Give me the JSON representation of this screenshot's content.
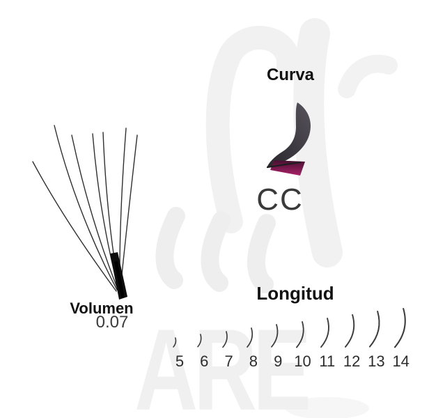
{
  "watermark": {
    "text": "ARE"
  },
  "volume": {
    "label": "Volumen",
    "value": "0.07"
  },
  "curve": {
    "label": "Curva",
    "type": "CC"
  },
  "length": {
    "label": "Longitud",
    "values": [
      "5",
      "6",
      "7",
      "8",
      "9",
      "10",
      "11",
      "12",
      "13",
      "14"
    ]
  },
  "colors": {
    "label_text": "#111111",
    "value_text": "#3a3a3a",
    "lash_stroke": "#3c3c3c",
    "curl_dark": "#4e4952",
    "curl_magenta": "#a52168",
    "watermark_gray": "#f0f0f0"
  }
}
